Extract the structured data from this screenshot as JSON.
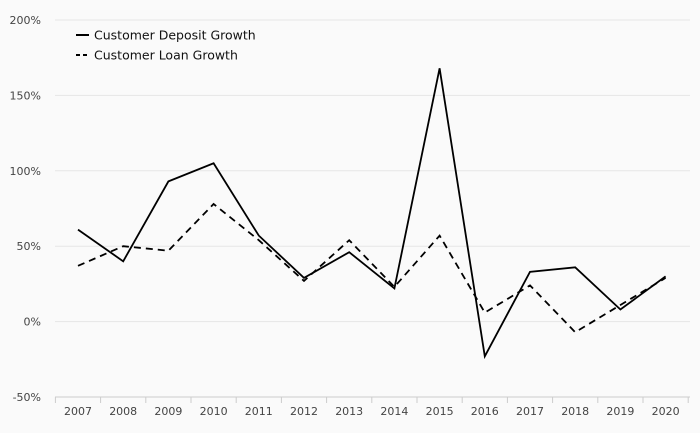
{
  "chart_data": {
    "type": "line",
    "x": [
      "2007",
      "2008",
      "2009",
      "2010",
      "2011",
      "2012",
      "2013",
      "2014",
      "2015",
      "2016",
      "2017",
      "2018",
      "2019",
      "2020"
    ],
    "series": [
      {
        "name": "Customer Deposit Growth",
        "style": "solid",
        "values": [
          61,
          40,
          93,
          105,
          57,
          29,
          46,
          22,
          168,
          -23,
          33,
          36,
          8,
          30
        ]
      },
      {
        "name": "Customer Loan Growth",
        "style": "dashed",
        "values": [
          37,
          50,
          47,
          78,
          54,
          27,
          54,
          23,
          57,
          6,
          24,
          -7,
          11,
          29
        ]
      }
    ],
    "ylim": [
      -50,
      200
    ],
    "yticks": [
      200,
      150,
      100,
      50,
      0,
      -50
    ],
    "ytick_labels": [
      "200%",
      "150%",
      "100%",
      "50%",
      "0%",
      "-50%"
    ],
    "xlabel": "",
    "ylabel": "",
    "title": "",
    "grid": "horizontal",
    "legend_position": "top-left",
    "colors": {
      "line": "#000000",
      "grid": "#e6e6e6",
      "background": "#fafafa",
      "tick_text": "#444444",
      "axis": "#cccccc"
    }
  }
}
